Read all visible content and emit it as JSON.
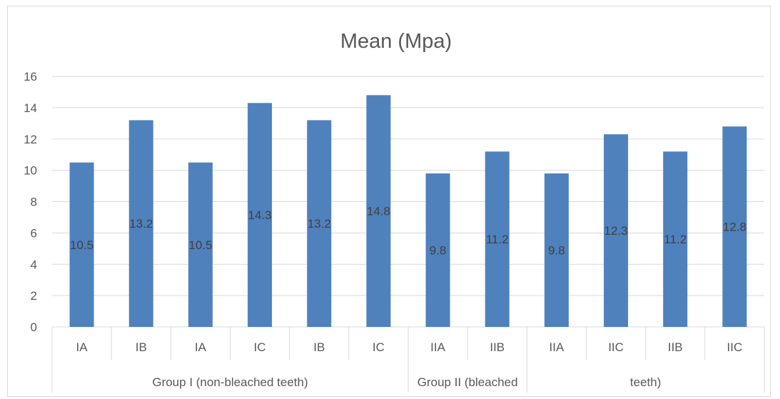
{
  "chart_data": {
    "type": "bar",
    "title": "Mean (Mpa)",
    "categories": [
      "IA",
      "IB",
      "IA",
      "IC",
      "IB",
      "IC",
      "IIA",
      "IIB",
      "IIA",
      "IIC",
      "IIB",
      "IIC"
    ],
    "groups": [
      {
        "label": "Group I (non-bleached teeth)",
        "start": 0,
        "end": 6
      },
      {
        "label": "Group II (bleached",
        "start": 6,
        "end": 8
      },
      {
        "label": "teeth)",
        "start": 8,
        "end": 12
      }
    ],
    "values": [
      10.5,
      13.2,
      10.5,
      14.3,
      13.2,
      14.8,
      9.8,
      11.2,
      9.8,
      12.3,
      11.2,
      12.8
    ],
    "ylim": [
      0,
      16
    ],
    "yticks": [
      0,
      2,
      4,
      6,
      8,
      10,
      12,
      14,
      16
    ],
    "grid": true,
    "legend": "none",
    "colors": {
      "bar": "#4f81bd",
      "grid": "#d9d9d9",
      "text": "#595959"
    }
  }
}
